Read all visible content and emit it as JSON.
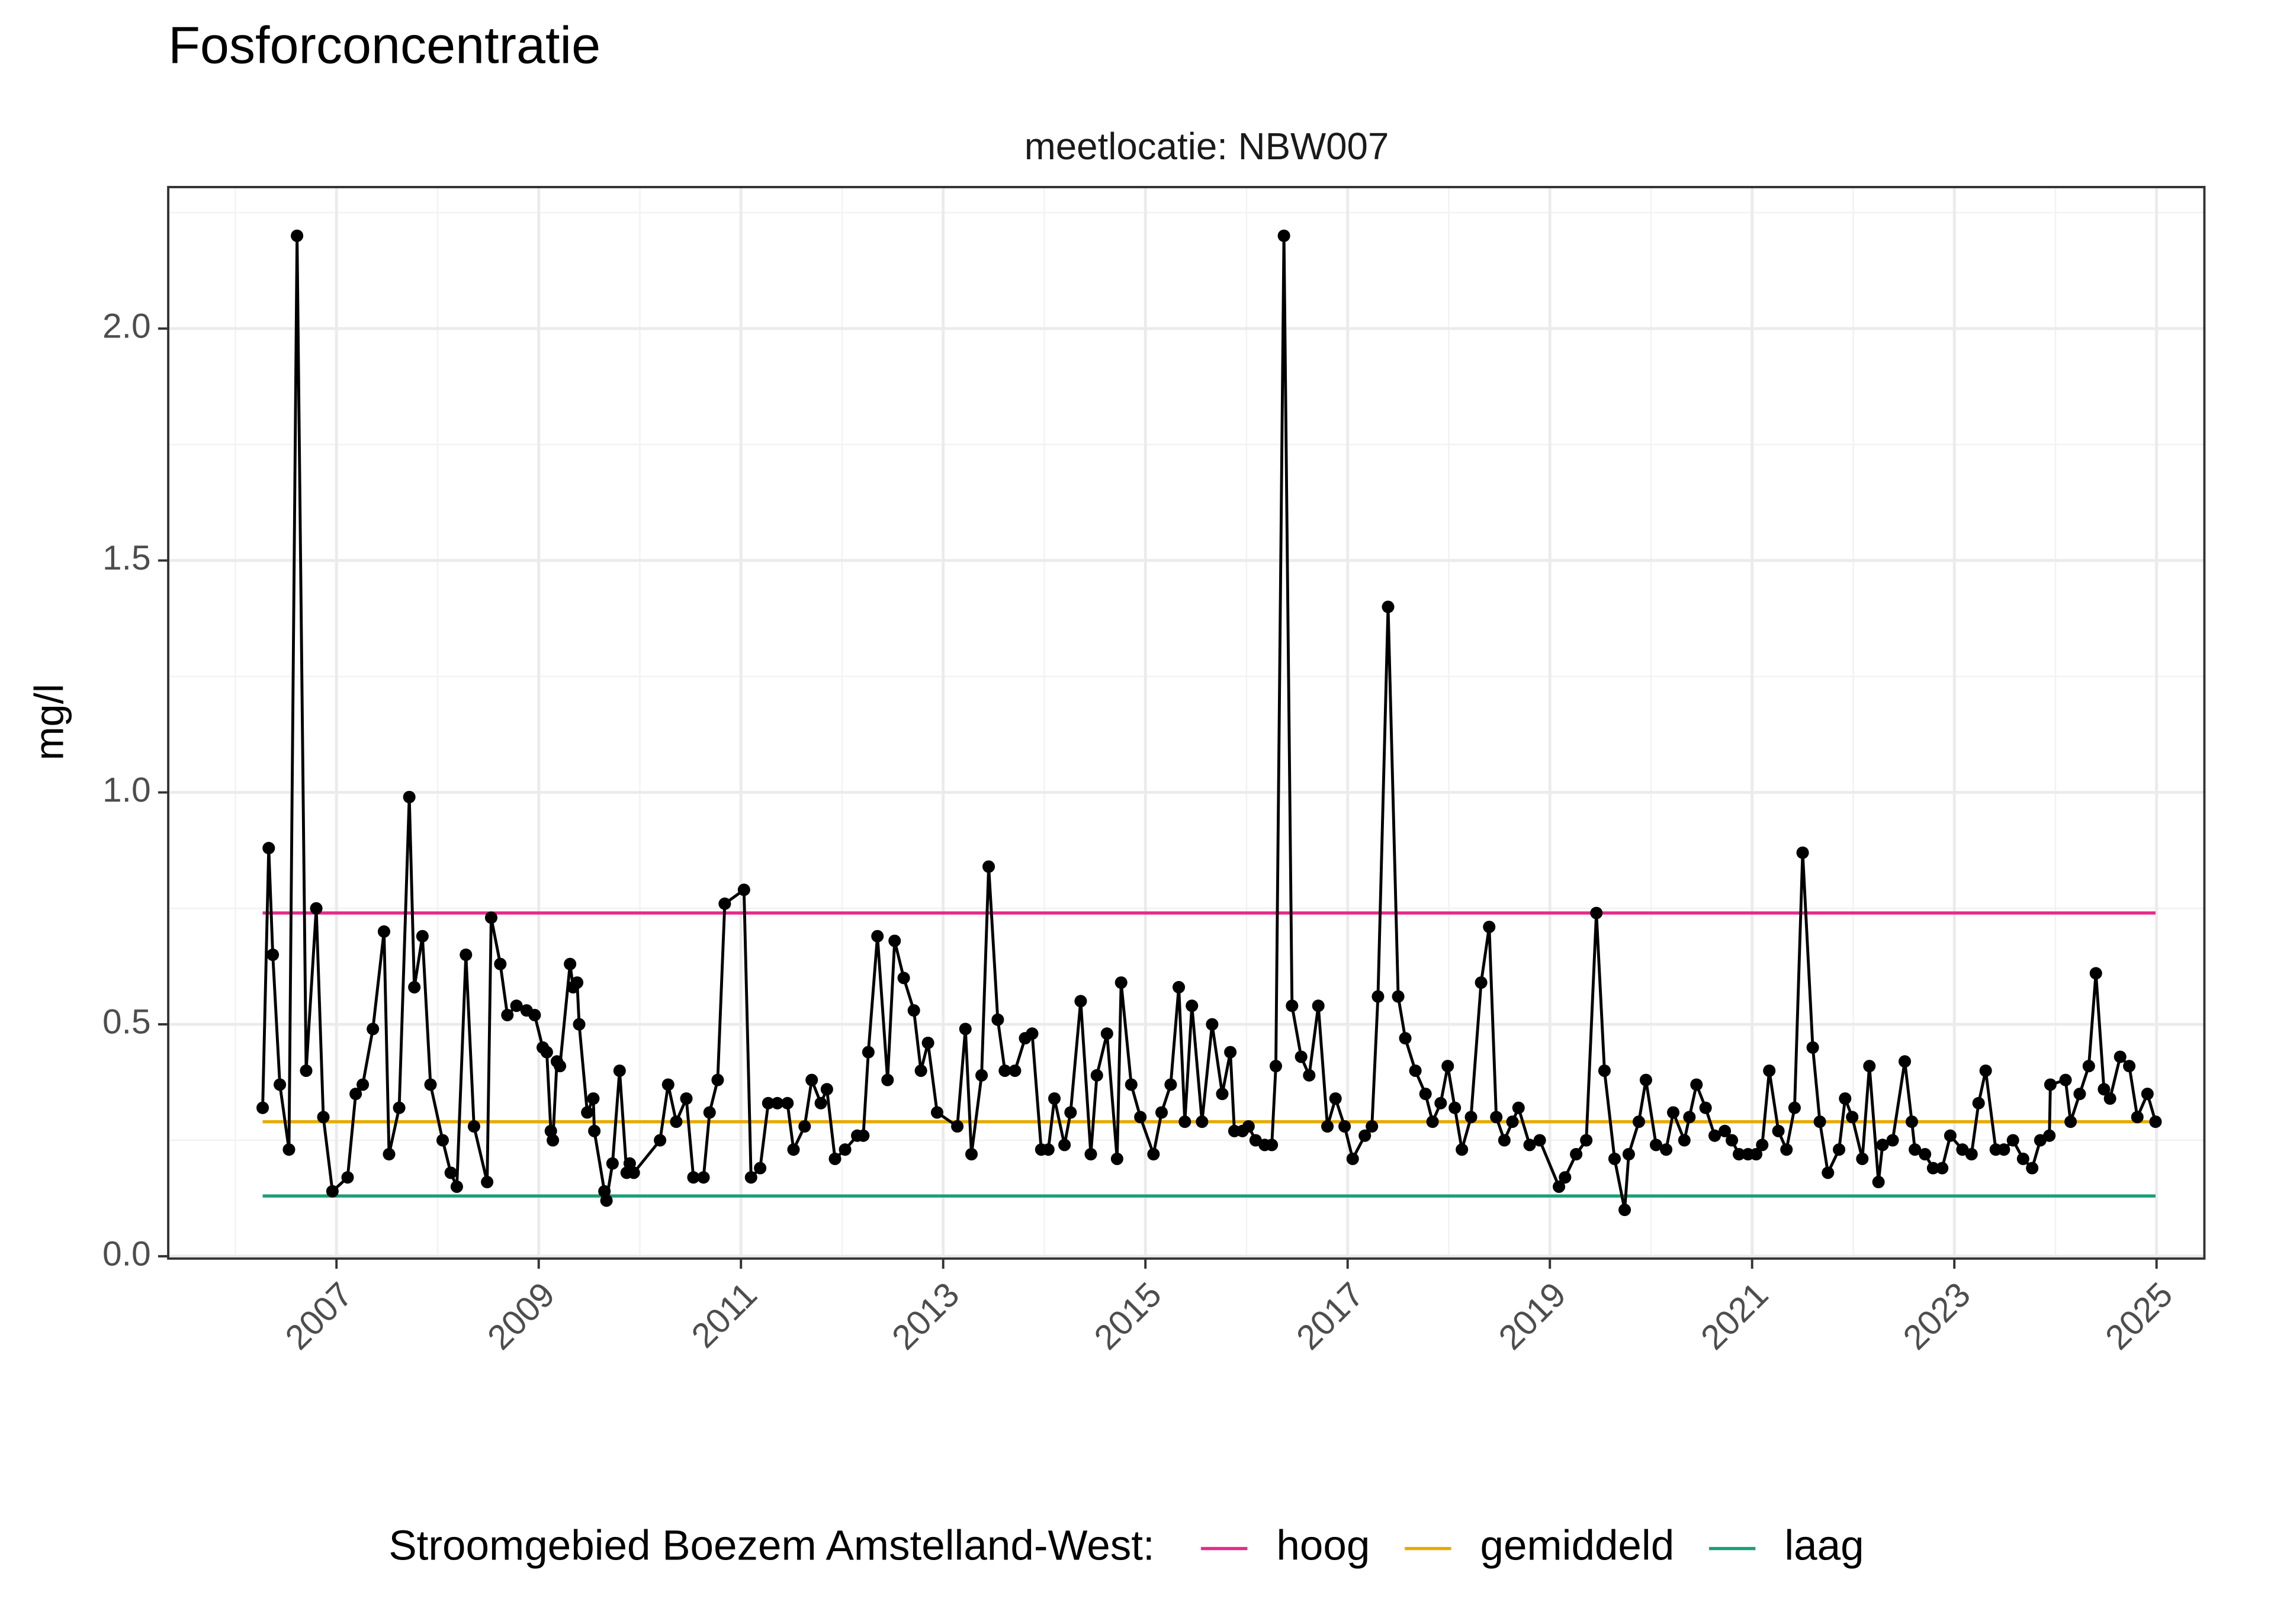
{
  "chart_data": {
    "type": "line",
    "title": "Fosforconcentratie",
    "subtitle": "meetlocatie: NBW007",
    "ylabel": "mg/l",
    "legend_title": "Stroomgebied Boezem Amstelland-West:",
    "legend_position": "bottom",
    "grid": true,
    "xlim": [
      2005.336,
      2025.473
    ],
    "ylim": [
      -0.005,
      2.305
    ],
    "xticks": [
      2007,
      2009,
      2011,
      2013,
      2015,
      2017,
      2019,
      2021,
      2023,
      2025
    ],
    "yticks": [
      {
        "value": 0,
        "label": "0.0"
      },
      0.5,
      {
        "value": 1,
        "label": "1.0"
      },
      1.5,
      {
        "value": 2,
        "label": "2.0"
      }
    ],
    "xminor": [
      2006,
      2008,
      2010,
      2012,
      2014,
      2016,
      2018,
      2020,
      2022,
      2024
    ],
    "yminor": [
      0.25,
      0.75,
      1.25,
      1.75,
      2.25
    ],
    "series": [
      {
        "color": "#000000",
        "markers": true,
        "x": [
          2006.27,
          2006.33,
          2006.37,
          2006.44,
          2006.53,
          2006.61,
          2006.7,
          2006.8,
          2006.87,
          2006.96,
          2007.11,
          2007.19,
          2007.26,
          2007.36,
          2007.47,
          2007.52,
          2007.62,
          2007.72,
          2007.77,
          2007.85,
          2007.93,
          2008.05,
          2008.13,
          2008.19,
          2008.28,
          2008.36,
          2008.49,
          2008.53,
          2008.62,
          2008.69,
          2008.78,
          2008.88,
          2008.96,
          2009.04,
          2009.08,
          2009.12,
          2009.14,
          2009.18,
          2009.21,
          2009.31,
          2009.34,
          2009.38,
          2009.4,
          2009.48,
          2009.54,
          2009.55,
          2009.65,
          2009.67,
          2009.73,
          2009.8,
          2009.87,
          2009.9,
          2009.94,
          2010.2,
          2010.28,
          2010.36,
          2010.46,
          2010.53,
          2010.63,
          2010.69,
          2010.77,
          2010.84,
          2011.03,
          2011.1,
          2011.19,
          2011.27,
          2011.36,
          2011.46,
          2011.52,
          2011.63,
          2011.7,
          2011.79,
          2011.85,
          2011.93,
          2012.03,
          2012.15,
          2012.21,
          2012.26,
          2012.35,
          2012.45,
          2012.52,
          2012.61,
          2012.71,
          2012.78,
          2012.85,
          2012.94,
          2013.14,
          2013.22,
          2013.28,
          2013.38,
          2013.45,
          2013.54,
          2013.61,
          2013.71,
          2013.81,
          2013.88,
          2013.97,
          2014.04,
          2014.1,
          2014.2,
          2014.26,
          2014.36,
          2014.46,
          2014.52,
          2014.62,
          2014.72,
          2014.76,
          2014.86,
          2014.95,
          2015.08,
          2015.16,
          2015.25,
          2015.33,
          2015.39,
          2015.46,
          2015.56,
          2015.66,
          2015.76,
          2015.84,
          2015.88,
          2015.96,
          2016.02,
          2016.09,
          2016.18,
          2016.25,
          2016.29,
          2016.37,
          2016.45,
          2016.54,
          2016.62,
          2016.71,
          2016.8,
          2016.88,
          2016.97,
          2017.05,
          2017.17,
          2017.24,
          2017.3,
          2017.4,
          2017.5,
          2017.57,
          2017.67,
          2017.77,
          2017.84,
          2017.92,
          2017.99,
          2018.06,
          2018.13,
          2018.22,
          2018.32,
          2018.4,
          2018.47,
          2018.55,
          2018.63,
          2018.69,
          2018.8,
          2018.9,
          2019.09,
          2019.15,
          2019.26,
          2019.36,
          2019.46,
          2019.54,
          2019.64,
          2019.74,
          2019.78,
          2019.88,
          2019.95,
          2020.05,
          2020.15,
          2020.22,
          2020.33,
          2020.38,
          2020.45,
          2020.54,
          2020.63,
          2020.73,
          2020.8,
          2020.87,
          2020.96,
          2021.04,
          2021.1,
          2021.17,
          2021.26,
          2021.34,
          2021.42,
          2021.5,
          2021.6,
          2021.67,
          2021.75,
          2021.86,
          2021.92,
          2021.99,
          2022.09,
          2022.16,
          2022.25,
          2022.29,
          2022.39,
          2022.51,
          2022.58,
          2022.61,
          2022.71,
          2022.79,
          2022.88,
          2022.96,
          2023.08,
          2023.17,
          2023.24,
          2023.31,
          2023.41,
          2023.49,
          2023.58,
          2023.68,
          2023.77,
          2023.85,
          2023.94,
          2023.95,
          2024.1,
          2024.15,
          2024.24,
          2024.33,
          2024.4,
          2024.48,
          2024.54,
          2024.64,
          2024.73,
          2024.81,
          2024.91,
          2024.99
        ],
        "values": [
          0.32,
          0.88,
          0.65,
          0.37,
          0.23,
          2.2,
          0.4,
          0.75,
          0.3,
          0.14,
          0.17,
          0.35,
          0.37,
          0.49,
          0.7,
          0.22,
          0.32,
          0.99,
          0.58,
          0.69,
          0.37,
          0.25,
          0.18,
          0.15,
          0.65,
          0.28,
          0.16,
          0.73,
          0.63,
          0.52,
          0.54,
          0.53,
          0.52,
          0.45,
          0.44,
          0.27,
          0.25,
          0.42,
          0.41,
          0.63,
          0.58,
          0.59,
          0.5,
          0.31,
          0.34,
          0.27,
          0.14,
          0.12,
          0.2,
          0.4,
          0.18,
          0.2,
          0.18,
          0.25,
          0.37,
          0.29,
          0.34,
          0.17,
          0.17,
          0.31,
          0.38,
          0.76,
          0.79,
          0.17,
          0.19,
          0.33,
          0.33,
          0.33,
          0.23,
          0.28,
          0.38,
          0.33,
          0.36,
          0.21,
          0.23,
          0.26,
          0.26,
          0.44,
          0.69,
          0.38,
          0.68,
          0.6,
          0.53,
          0.4,
          0.46,
          0.31,
          0.28,
          0.49,
          0.22,
          0.39,
          0.84,
          0.51,
          0.4,
          0.4,
          0.47,
          0.48,
          0.23,
          0.23,
          0.34,
          0.24,
          0.31,
          0.55,
          0.22,
          0.39,
          0.48,
          0.21,
          0.59,
          0.37,
          0.3,
          0.22,
          0.31,
          0.37,
          0.58,
          0.29,
          0.54,
          0.29,
          0.5,
          0.35,
          0.44,
          0.27,
          0.27,
          0.28,
          0.25,
          0.24,
          0.24,
          0.41,
          2.2,
          0.54,
          0.43,
          0.39,
          0.54,
          0.28,
          0.34,
          0.28,
          0.21,
          0.26,
          0.28,
          0.56,
          1.4,
          0.56,
          0.47,
          0.4,
          0.35,
          0.29,
          0.33,
          0.41,
          0.32,
          0.23,
          0.3,
          0.59,
          0.71,
          0.3,
          0.25,
          0.29,
          0.32,
          0.24,
          0.25,
          0.15,
          0.17,
          0.22,
          0.25,
          0.74,
          0.4,
          0.21,
          0.1,
          0.22,
          0.29,
          0.38,
          0.24,
          0.23,
          0.31,
          0.25,
          0.3,
          0.37,
          0.32,
          0.26,
          0.27,
          0.25,
          0.22,
          0.22,
          0.22,
          0.24,
          0.4,
          0.27,
          0.23,
          0.32,
          0.87,
          0.45,
          0.29,
          0.18,
          0.23,
          0.34,
          0.3,
          0.21,
          0.41,
          0.16,
          0.24,
          0.25,
          0.42,
          0.29,
          0.23,
          0.22,
          0.19,
          0.19,
          0.26,
          0.23,
          0.22,
          0.33,
          0.4,
          0.23,
          0.23,
          0.25,
          0.21,
          0.19,
          0.25,
          0.26,
          0.37,
          0.38,
          0.29,
          0.35,
          0.41,
          0.61,
          0.36,
          0.34,
          0.43,
          0.41,
          0.3,
          0.35,
          0.29
        ]
      },
      {
        "name": "hoog",
        "color": "#e7298a",
        "x": [
          2006.27,
          2024.99
        ],
        "values": [
          0.74,
          0.74
        ]
      },
      {
        "name": "gemiddeld",
        "color": "#e6ab02",
        "x": [
          2006.27,
          2024.99
        ],
        "values": [
          0.29,
          0.29
        ]
      },
      {
        "name": "laag",
        "color": "#1b9e77",
        "x": [
          2006.27,
          2024.99
        ],
        "values": [
          0.13,
          0.13
        ]
      }
    ]
  }
}
